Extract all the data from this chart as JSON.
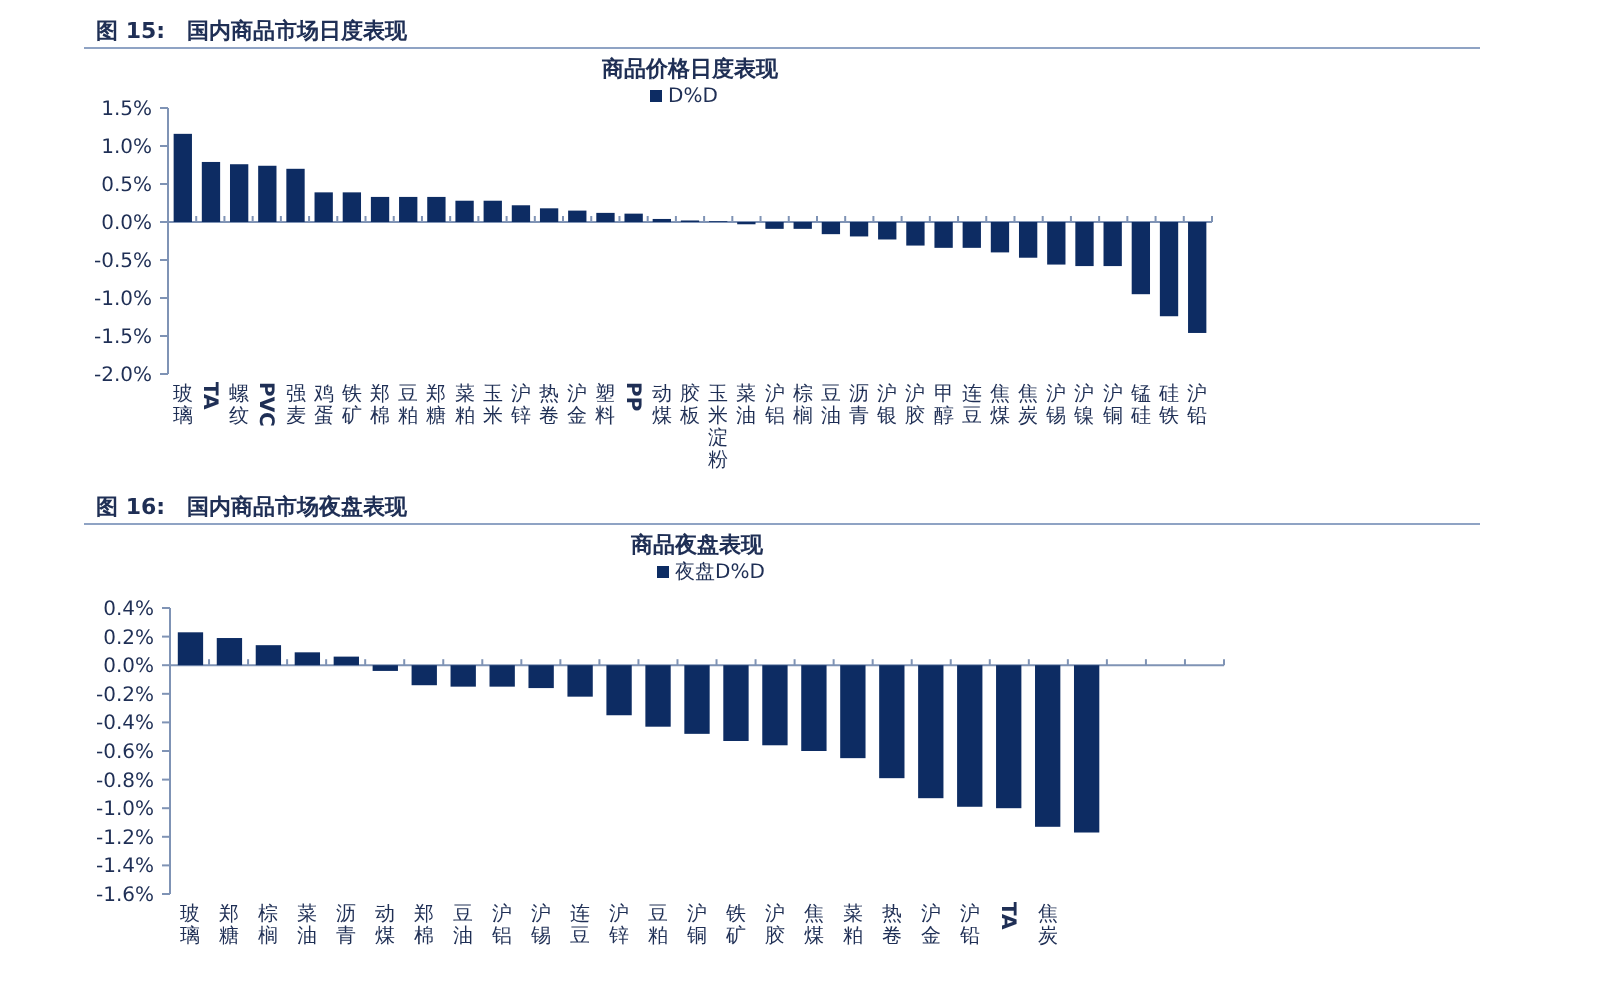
{
  "chart_data": [
    {
      "type": "bar",
      "title": "图 15:　国内商品市场日度表现",
      "subtitle": "商品价格日度表现",
      "categories": [
        "玻璃",
        "TA",
        "螺纹",
        "PVC",
        "强麦",
        "鸡蛋",
        "铁矿",
        "郑棉",
        "豆粕",
        "郑糖",
        "菜粕",
        "玉米",
        "沪锌",
        "热卷",
        "沪金",
        "塑料",
        "PP",
        "动煤",
        "胶板",
        "玉米淀粉",
        "菜油",
        "沪铝",
        "棕榈",
        "豆油",
        "沥青",
        "沪银",
        "沪胶",
        "甲醇",
        "连豆",
        "焦煤",
        "焦炭",
        "沪锡",
        "沪镍",
        "沪铜",
        "锰硅",
        "硅铁",
        "沪铅"
      ],
      "series": [
        {
          "name": "D%D",
          "color": "#0d2c63",
          "values": [
            1.16,
            0.79,
            0.76,
            0.74,
            0.7,
            0.39,
            0.39,
            0.33,
            0.33,
            0.33,
            0.28,
            0.28,
            0.22,
            0.18,
            0.15,
            0.12,
            0.11,
            0.04,
            0.02,
            0.01,
            -0.03,
            -0.09,
            -0.09,
            -0.16,
            -0.19,
            -0.23,
            -0.31,
            -0.34,
            -0.34,
            -0.4,
            -0.47,
            -0.56,
            -0.58,
            -0.58,
            -0.95,
            -1.24,
            -1.46
          ]
        }
      ],
      "ylim": [
        -2.0,
        1.5
      ],
      "yticks": [
        {
          "value": 1.5,
          "label": "1.5%"
        },
        {
          "value": 1.0,
          "label": "1.0%"
        },
        {
          "value": 0.5,
          "label": "0.5%"
        },
        {
          "value": 0,
          "label": "0.0%"
        },
        {
          "value": -0.5,
          "label": "-0.5%"
        },
        {
          "value": -1.0,
          "label": "-1.0%"
        },
        {
          "value": -1.5,
          "label": "-1.5%"
        },
        {
          "value": -2.0,
          "label": "-2.0%"
        }
      ],
      "legend": "top",
      "grid": false,
      "ref_lines": [
        {
          "axis": "y",
          "value": 0,
          "color": "#7f93b5"
        }
      ]
    },
    {
      "type": "bar",
      "title": "图 16:　国内商品市场夜盘表现",
      "subtitle": "商品夜盘表现",
      "categories": [
        "玻璃",
        "郑糖",
        "棕榈",
        "菜油",
        "沥青",
        "动煤",
        "郑棉",
        "豆油",
        "沪铝",
        "沪锡",
        "连豆",
        "沪锌",
        "豆粕",
        "沪铜",
        "铁矿",
        "沪胶",
        "焦煤",
        "菜粕",
        "热卷",
        "沪金",
        "沪铅",
        "TA",
        "焦炭",
        null,
        null,
        null,
        null
      ],
      "series": [
        {
          "name": "夜盘D%D",
          "color": "#0d2c63",
          "values": [
            0.23,
            0.19,
            0.14,
            0.09,
            0.06,
            -0.04,
            -0.14,
            -0.15,
            -0.15,
            -0.16,
            -0.22,
            -0.35,
            -0.43,
            -0.48,
            -0.53,
            -0.56,
            -0.6,
            -0.65,
            -0.79,
            -0.93,
            -0.99,
            -1.0,
            -1.13,
            -1.17,
            null,
            null,
            null
          ]
        }
      ],
      "ylim": [
        -1.6,
        0.4
      ],
      "yticks": [
        {
          "value": 0.4,
          "label": "0.4%"
        },
        {
          "value": 0.2,
          "label": "0.2%"
        },
        {
          "value": 0,
          "label": "0.0%"
        },
        {
          "value": -0.2,
          "label": "-0.2%"
        },
        {
          "value": -0.4,
          "label": "-0.4%"
        },
        {
          "value": -0.6,
          "label": "-0.6%"
        },
        {
          "value": -0.8,
          "label": "-0.8%"
        },
        {
          "value": -1.0,
          "label": "-1.0%"
        },
        {
          "value": -1.2,
          "label": "-1.2%"
        },
        {
          "value": -1.4,
          "label": "-1.4%"
        },
        {
          "value": -1.6,
          "label": "-1.6%"
        }
      ],
      "legend": "top",
      "grid": false,
      "ref_lines": [
        {
          "axis": "y",
          "value": 0,
          "color": "#7f93b5"
        }
      ]
    }
  ]
}
